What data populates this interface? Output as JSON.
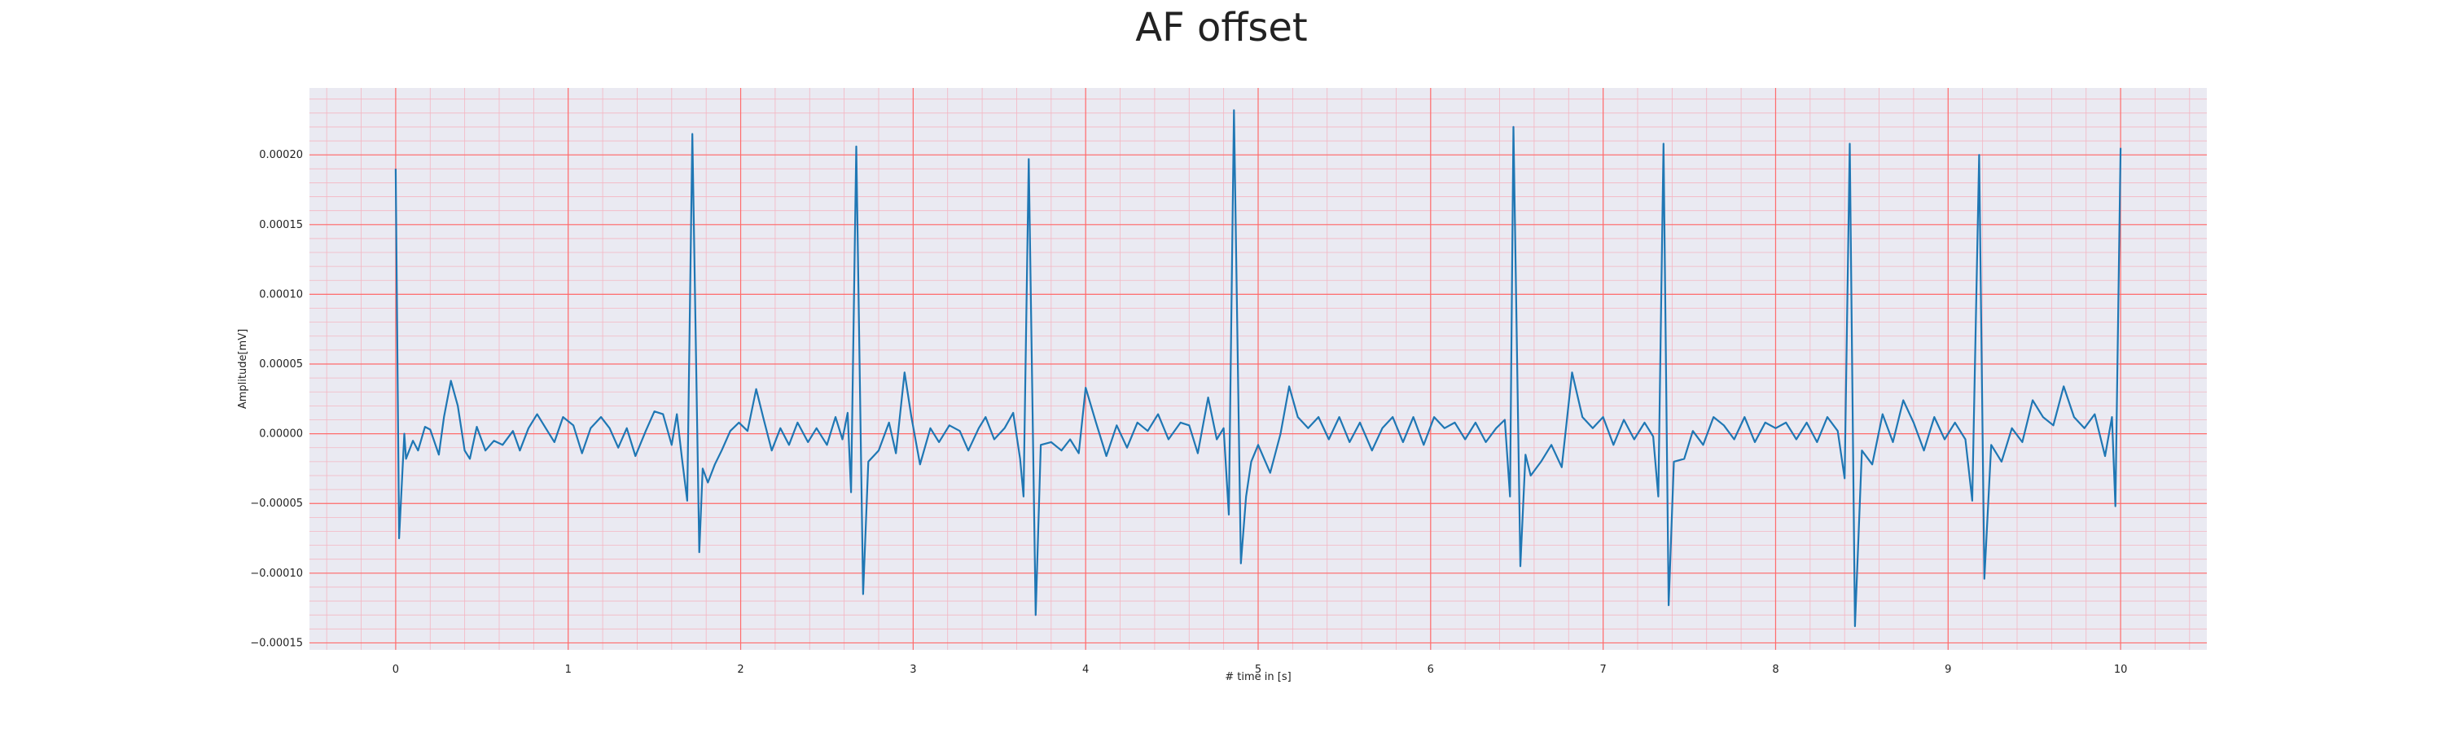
{
  "chart_data": {
    "type": "line",
    "title": "AF offset",
    "xlabel": "# time in [s]",
    "ylabel": "Amplitude[mV]",
    "xlim": [
      -0.5,
      10.5
    ],
    "ylim": [
      -0.000155,
      0.000248
    ],
    "x_ticks": [
      0,
      1,
      2,
      3,
      4,
      5,
      6,
      7,
      8,
      9,
      10
    ],
    "x_tick_labels": [
      "0",
      "1",
      "2",
      "3",
      "4",
      "5",
      "6",
      "7",
      "8",
      "9",
      "10"
    ],
    "y_ticks": [
      -0.00015,
      -0.0001,
      -5e-05,
      0,
      5e-05,
      0.0001,
      0.00015,
      0.0002
    ],
    "y_tick_labels": [
      "−0.00015",
      "−0.00010",
      "−0.00005",
      "0.00000",
      "0.00005",
      "0.00010",
      "0.00015",
      "0.00020"
    ],
    "grid": true,
    "colors": {
      "background": "#eaeaf2",
      "major_grid": "#ff6b6b",
      "minor_grid": "#f4b6c2",
      "line": "#1f77b4"
    },
    "series": [
      {
        "values": [
          [
            0.0,
            0.00019
          ],
          [
            0.02,
            -7.5e-05
          ],
          [
            0.05,
            0.0
          ],
          [
            0.06,
            -1.8e-05
          ],
          [
            0.1,
            -5e-06
          ],
          [
            0.13,
            -1.2e-05
          ],
          [
            0.17,
            5e-06
          ],
          [
            0.2,
            3e-06
          ],
          [
            0.25,
            -1.5e-05
          ],
          [
            0.28,
            1.2e-05
          ],
          [
            0.32,
            3.8e-05
          ],
          [
            0.36,
            2e-05
          ],
          [
            0.4,
            -1.2e-05
          ],
          [
            0.43,
            -1.8e-05
          ],
          [
            0.47,
            5e-06
          ],
          [
            0.52,
            -1.2e-05
          ],
          [
            0.57,
            -5e-06
          ],
          [
            0.62,
            -8e-06
          ],
          [
            0.68,
            2e-06
          ],
          [
            0.72,
            -1.2e-05
          ],
          [
            0.77,
            4e-06
          ],
          [
            0.82,
            1.4e-05
          ],
          [
            0.87,
            4e-06
          ],
          [
            0.92,
            -6e-06
          ],
          [
            0.97,
            1.2e-05
          ],
          [
            1.03,
            6e-06
          ],
          [
            1.08,
            -1.4e-05
          ],
          [
            1.13,
            4e-06
          ],
          [
            1.19,
            1.2e-05
          ],
          [
            1.24,
            4e-06
          ],
          [
            1.29,
            -1e-05
          ],
          [
            1.34,
            4e-06
          ],
          [
            1.39,
            -1.6e-05
          ],
          [
            1.45,
            2e-06
          ],
          [
            1.5,
            1.6e-05
          ],
          [
            1.55,
            1.4e-05
          ],
          [
            1.6,
            -8e-06
          ],
          [
            1.63,
            1.4e-05
          ],
          [
            1.66,
            -1.8e-05
          ],
          [
            1.69,
            -4.8e-05
          ],
          [
            1.72,
            0.000215
          ],
          [
            1.76,
            -8.5e-05
          ],
          [
            1.78,
            -2.5e-05
          ],
          [
            1.81,
            -3.5e-05
          ],
          [
            1.85,
            -2.2e-05
          ],
          [
            1.89,
            -1.2e-05
          ],
          [
            1.94,
            2e-06
          ],
          [
            1.99,
            8e-06
          ],
          [
            2.04,
            2e-06
          ],
          [
            2.09,
            3.2e-05
          ],
          [
            2.13,
            1.2e-05
          ],
          [
            2.18,
            -1.2e-05
          ],
          [
            2.23,
            4e-06
          ],
          [
            2.28,
            -8e-06
          ],
          [
            2.33,
            8e-06
          ],
          [
            2.39,
            -6e-06
          ],
          [
            2.44,
            4e-06
          ],
          [
            2.5,
            -8e-06
          ],
          [
            2.55,
            1.2e-05
          ],
          [
            2.59,
            -4e-06
          ],
          [
            2.62,
            1.5e-05
          ],
          [
            2.64,
            -4.2e-05
          ],
          [
            2.67,
            0.000206
          ],
          [
            2.71,
            -0.000115
          ],
          [
            2.74,
            -2e-05
          ],
          [
            2.8,
            -1.2e-05
          ],
          [
            2.86,
            8e-06
          ],
          [
            2.9,
            -1.4e-05
          ],
          [
            2.95,
            4.4e-05
          ],
          [
            2.99,
            1.2e-05
          ],
          [
            3.04,
            -2.2e-05
          ],
          [
            3.1,
            4e-06
          ],
          [
            3.15,
            -6e-06
          ],
          [
            3.21,
            6e-06
          ],
          [
            3.27,
            2e-06
          ],
          [
            3.32,
            -1.2e-05
          ],
          [
            3.38,
            4e-06
          ],
          [
            3.42,
            1.2e-05
          ],
          [
            3.47,
            -4e-06
          ],
          [
            3.53,
            4e-06
          ],
          [
            3.58,
            1.5e-05
          ],
          [
            3.62,
            -1.8e-05
          ],
          [
            3.64,
            -4.5e-05
          ],
          [
            3.67,
            0.000197
          ],
          [
            3.71,
            -0.00013
          ],
          [
            3.74,
            -8e-06
          ],
          [
            3.8,
            -6e-06
          ],
          [
            3.86,
            -1.2e-05
          ],
          [
            3.91,
            -4e-06
          ],
          [
            3.96,
            -1.4e-05
          ],
          [
            4.0,
            3.3e-05
          ],
          [
            4.06,
            8e-06
          ],
          [
            4.12,
            -1.6e-05
          ],
          [
            4.18,
            6e-06
          ],
          [
            4.24,
            -1e-05
          ],
          [
            4.3,
            8e-06
          ],
          [
            4.36,
            2e-06
          ],
          [
            4.42,
            1.4e-05
          ],
          [
            4.48,
            -4e-06
          ],
          [
            4.55,
            8e-06
          ],
          [
            4.6,
            6e-06
          ],
          [
            4.65,
            -1.4e-05
          ],
          [
            4.71,
            2.6e-05
          ],
          [
            4.76,
            -4e-06
          ],
          [
            4.8,
            4e-06
          ],
          [
            4.83,
            -5.8e-05
          ],
          [
            4.86,
            0.000232
          ],
          [
            4.9,
            -9.3e-05
          ],
          [
            4.93,
            -4.5e-05
          ],
          [
            4.96,
            -2e-05
          ],
          [
            5.0,
            -8e-06
          ],
          [
            5.07,
            -2.8e-05
          ],
          [
            5.13,
            0.0
          ],
          [
            5.18,
            3.4e-05
          ],
          [
            5.23,
            1.2e-05
          ],
          [
            5.29,
            4e-06
          ],
          [
            5.35,
            1.2e-05
          ],
          [
            5.41,
            -4e-06
          ],
          [
            5.47,
            1.2e-05
          ],
          [
            5.53,
            -6e-06
          ],
          [
            5.59,
            8e-06
          ],
          [
            5.66,
            -1.2e-05
          ],
          [
            5.72,
            4e-06
          ],
          [
            5.78,
            1.2e-05
          ],
          [
            5.84,
            -6e-06
          ],
          [
            5.9,
            1.2e-05
          ],
          [
            5.96,
            -8e-06
          ],
          [
            6.02,
            1.2e-05
          ],
          [
            6.08,
            4e-06
          ],
          [
            6.14,
            8e-06
          ],
          [
            6.2,
            -4e-06
          ],
          [
            6.26,
            8e-06
          ],
          [
            6.32,
            -6e-06
          ],
          [
            6.38,
            4e-06
          ],
          [
            6.43,
            1e-05
          ],
          [
            6.46,
            -4.5e-05
          ],
          [
            6.48,
            0.00022
          ],
          [
            6.52,
            -9.5e-05
          ],
          [
            6.55,
            -1.5e-05
          ],
          [
            6.58,
            -3e-05
          ],
          [
            6.64,
            -2e-05
          ],
          [
            6.7,
            -8e-06
          ],
          [
            6.76,
            -2.4e-05
          ],
          [
            6.82,
            4.4e-05
          ],
          [
            6.88,
            1.2e-05
          ],
          [
            6.94,
            4e-06
          ],
          [
            7.0,
            1.2e-05
          ],
          [
            7.06,
            -8e-06
          ],
          [
            7.12,
            1e-05
          ],
          [
            7.18,
            -4e-06
          ],
          [
            7.24,
            8e-06
          ],
          [
            7.29,
            -2e-06
          ],
          [
            7.32,
            -4.5e-05
          ],
          [
            7.35,
            0.000208
          ],
          [
            7.38,
            -0.000123
          ],
          [
            7.41,
            -2e-05
          ],
          [
            7.47,
            -1.8e-05
          ],
          [
            7.52,
            2e-06
          ],
          [
            7.58,
            -8e-06
          ],
          [
            7.64,
            1.2e-05
          ],
          [
            7.7,
            6e-06
          ],
          [
            7.76,
            -4e-06
          ],
          [
            7.82,
            1.2e-05
          ],
          [
            7.88,
            -6e-06
          ],
          [
            7.94,
            8e-06
          ],
          [
            8.0,
            4e-06
          ],
          [
            8.06,
            8e-06
          ],
          [
            8.12,
            -4e-06
          ],
          [
            8.18,
            8e-06
          ],
          [
            8.24,
            -6e-06
          ],
          [
            8.3,
            1.2e-05
          ],
          [
            8.36,
            2e-06
          ],
          [
            8.4,
            -3.2e-05
          ],
          [
            8.43,
            0.000208
          ],
          [
            8.46,
            -0.000138
          ],
          [
            8.5,
            -1.2e-05
          ],
          [
            8.56,
            -2.2e-05
          ],
          [
            8.62,
            1.4e-05
          ],
          [
            8.68,
            -6e-06
          ],
          [
            8.74,
            2.4e-05
          ],
          [
            8.8,
            8e-06
          ],
          [
            8.86,
            -1.2e-05
          ],
          [
            8.92,
            1.2e-05
          ],
          [
            8.98,
            -4e-06
          ],
          [
            9.04,
            8e-06
          ],
          [
            9.1,
            -4e-06
          ],
          [
            9.14,
            -4.8e-05
          ],
          [
            9.18,
            0.0002
          ],
          [
            9.21,
            -0.000104
          ],
          [
            9.25,
            -8e-06
          ],
          [
            9.31,
            -2e-05
          ],
          [
            9.37,
            4e-06
          ],
          [
            9.43,
            -6e-06
          ],
          [
            9.49,
            2.4e-05
          ],
          [
            9.55,
            1.2e-05
          ],
          [
            9.61,
            6e-06
          ],
          [
            9.67,
            3.4e-05
          ],
          [
            9.73,
            1.2e-05
          ],
          [
            9.79,
            4e-06
          ],
          [
            9.85,
            1.4e-05
          ],
          [
            9.91,
            -1.6e-05
          ],
          [
            9.95,
            1.2e-05
          ],
          [
            9.97,
            -5.2e-05
          ],
          [
            10.0,
            0.000205
          ]
        ]
      }
    ]
  }
}
